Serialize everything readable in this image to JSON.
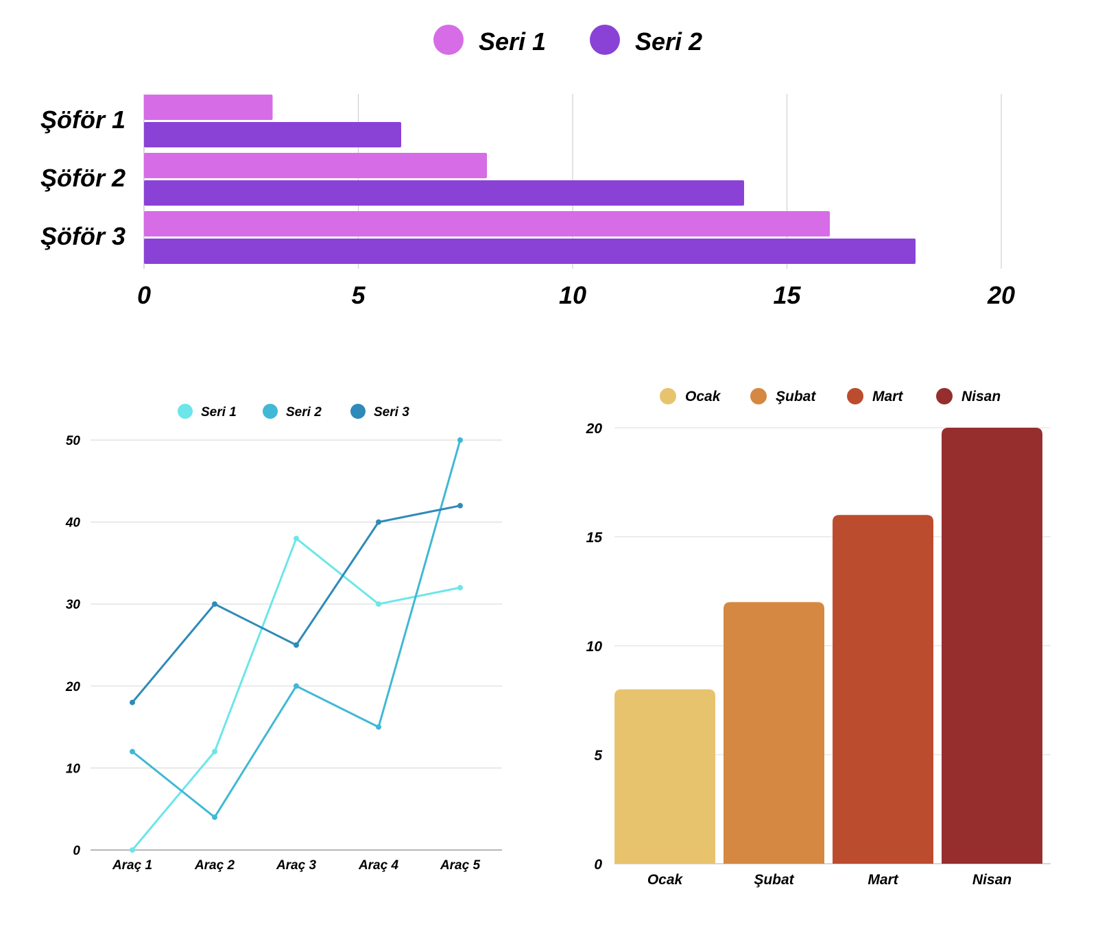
{
  "chart_data": [
    {
      "type": "bar",
      "orientation": "horizontal",
      "title": "",
      "categories": [
        "Şöför 1",
        "Şöför 2",
        "Şöför 3"
      ],
      "series": [
        {
          "name": "Seri 1",
          "color": "#d66ce6",
          "values": [
            3,
            8,
            16
          ]
        },
        {
          "name": "Seri 2",
          "color": "#8a42d6",
          "values": [
            6,
            14,
            18
          ]
        }
      ],
      "xlabel": "",
      "ylabel": "",
      "xlim": [
        0,
        20
      ],
      "xticks": [
        "0",
        "5",
        "10",
        "15",
        "20"
      ],
      "grid": true,
      "legend": "top-center"
    },
    {
      "type": "line",
      "title": "",
      "categories": [
        "Araç 1",
        "Araç 2",
        "Araç 3",
        "Araç 4",
        "Araç 5"
      ],
      "series": [
        {
          "name": "Seri 1",
          "color": "#6ce6e8",
          "values": [
            0,
            12,
            38,
            30,
            32
          ]
        },
        {
          "name": "Seri 2",
          "color": "#40b8d6",
          "values": [
            12,
            4,
            20,
            15,
            50
          ]
        },
        {
          "name": "Seri 3",
          "color": "#2e8ab8",
          "values": [
            18,
            30,
            25,
            40,
            42
          ]
        }
      ],
      "xlabel": "",
      "ylabel": "",
      "ylim": [
        0,
        50
      ],
      "yticks": [
        "0",
        "10",
        "20",
        "30",
        "40",
        "50"
      ],
      "grid": true,
      "legend": "top-center"
    },
    {
      "type": "bar",
      "orientation": "vertical",
      "title": "",
      "categories": [
        "Ocak",
        "Şubat",
        "Mart",
        "Nisan"
      ],
      "values": [
        8,
        12,
        16,
        20
      ],
      "colors": [
        "#e8c36e",
        "#d48842",
        "#bc4c2e",
        "#962e2e"
      ],
      "legend_entries": [
        "Ocak",
        "Şubat",
        "Mart",
        "Nisan"
      ],
      "xlabel": "",
      "ylabel": "",
      "ylim": [
        0,
        20
      ],
      "yticks": [
        "0",
        "5",
        "10",
        "15",
        "20"
      ],
      "grid": true,
      "legend": "top-center"
    }
  ]
}
